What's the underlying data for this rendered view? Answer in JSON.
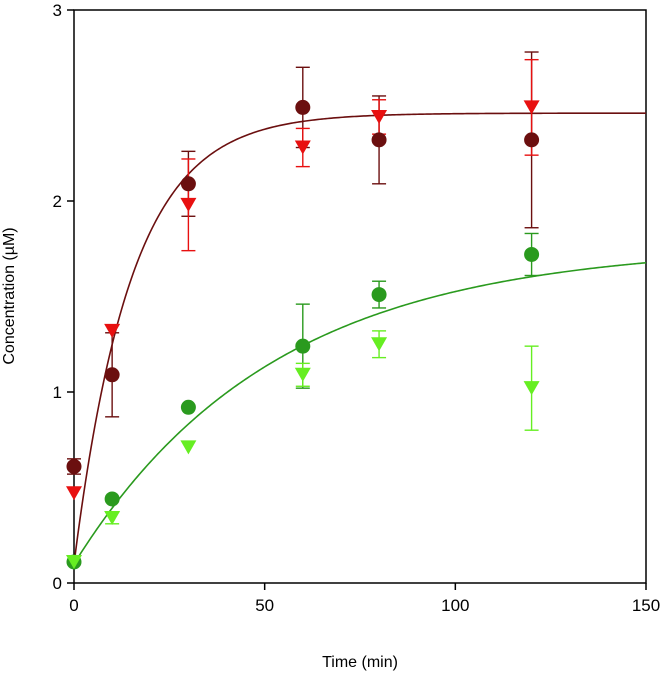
{
  "chart_data": {
    "type": "scatter",
    "xlabel": "Time (min)",
    "ylabel": "Concentration (µM)",
    "xlim": [
      0,
      150
    ],
    "ylim": [
      0,
      3
    ],
    "xticks": [
      0,
      50,
      100,
      150
    ],
    "yticks": [
      0,
      1,
      2,
      3
    ],
    "grid": false,
    "series": [
      {
        "marker": "circle",
        "color": "#6b0f0f",
        "points": [
          {
            "x": 0,
            "y": 0.61,
            "err": 0.04
          },
          {
            "x": 10,
            "y": 1.09,
            "err": 0.22
          },
          {
            "x": 30,
            "y": 2.09,
            "err": 0.17
          },
          {
            "x": 60,
            "y": 2.49,
            "err": 0.21
          },
          {
            "x": 80,
            "y": 2.32,
            "err": 0.23
          },
          {
            "x": 120,
            "y": 2.32,
            "err": 0.46
          }
        ]
      },
      {
        "marker": "triangle-down",
        "color": "#e81010",
        "points": [
          {
            "x": 0,
            "y": 0.47,
            "err": 0
          },
          {
            "x": 10,
            "y": 1.32,
            "err": 0
          },
          {
            "x": 30,
            "y": 1.98,
            "err": 0.24
          },
          {
            "x": 60,
            "y": 2.28,
            "err": 0.1
          },
          {
            "x": 80,
            "y": 2.44,
            "err": 0.09
          },
          {
            "x": 120,
            "y": 2.49,
            "err": 0.25
          }
        ]
      },
      {
        "marker": "circle",
        "color": "#2a9a1e",
        "points": [
          {
            "x": 0,
            "y": 0.11,
            "err": 0
          },
          {
            "x": 10,
            "y": 0.44,
            "err": 0
          },
          {
            "x": 30,
            "y": 0.92,
            "err": 0
          },
          {
            "x": 60,
            "y": 1.24,
            "err": 0.22
          },
          {
            "x": 80,
            "y": 1.51,
            "err": 0.07
          },
          {
            "x": 120,
            "y": 1.72,
            "err": 0.11
          }
        ]
      },
      {
        "marker": "triangle-down",
        "color": "#66ee22",
        "points": [
          {
            "x": 0,
            "y": 0.11,
            "err": 0
          },
          {
            "x": 10,
            "y": 0.34,
            "err": 0.03
          },
          {
            "x": 30,
            "y": 0.71,
            "err": 0
          },
          {
            "x": 60,
            "y": 1.09,
            "err": 0.06
          },
          {
            "x": 80,
            "y": 1.25,
            "err": 0.07
          },
          {
            "x": 120,
            "y": 1.02,
            "err": 0.22
          }
        ]
      }
    ],
    "fits": [
      {
        "color": "#6b0f0f",
        "model": "y0 + A(1-exp(-t/tau))",
        "y0": 0.1,
        "A": 2.36,
        "tau": 15
      },
      {
        "color": "#2a9a1e",
        "model": "y0 + A(1-exp(-t/tau))",
        "y0": 0.1,
        "A": 1.67,
        "tau": 52
      }
    ]
  }
}
